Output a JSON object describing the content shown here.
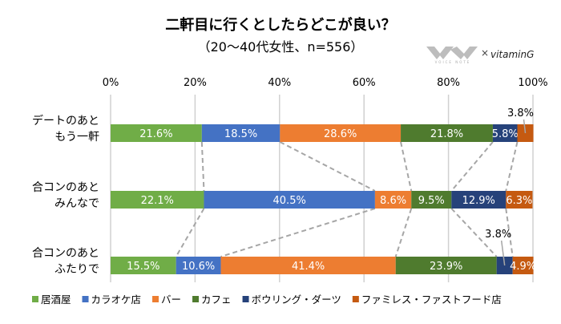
{
  "chart_data": {
    "type": "bar",
    "orientation": "horizontal",
    "stacked": "100%",
    "title": "二軒目に行くとしたらどこが良い？",
    "subtitle": "（20〜40代女性、n=556）",
    "categories": [
      [
        "デートのあと",
        "もう一軒"
      ],
      [
        "合コンのあと",
        "みんなで"
      ],
      [
        "合コンのあと",
        "ふたりで"
      ]
    ],
    "xlim": [
      0,
      100
    ],
    "x_ticks": [
      "0%",
      "20%",
      "40%",
      "60%",
      "80%",
      "100%"
    ],
    "grid": true,
    "legend_position": "bottom",
    "series": [
      {
        "name": "居酒屋",
        "color": "#70ad47",
        "values": [
          21.6,
          22.1,
          15.5
        ]
      },
      {
        "name": "カラオケ店",
        "color": "#4472c4",
        "values": [
          18.5,
          40.5,
          10.6
        ]
      },
      {
        "name": "バー",
        "color": "#ed7d31",
        "values": [
          28.6,
          8.6,
          41.4
        ]
      },
      {
        "name": "カフェ",
        "color": "#4f7b2e",
        "values": [
          21.8,
          9.5,
          23.9
        ]
      },
      {
        "name": "ボウリング・ダーツ",
        "color": "#26427a",
        "values": [
          5.8,
          12.9,
          3.8
        ]
      },
      {
        "name": "ファミレス・ファストフード店",
        "color": "#c55a11",
        "values": [
          3.8,
          6.3,
          4.9
        ]
      }
    ]
  },
  "logo": {
    "left": "VOICE NOTE",
    "cross": "×",
    "right": "vitaminG"
  }
}
